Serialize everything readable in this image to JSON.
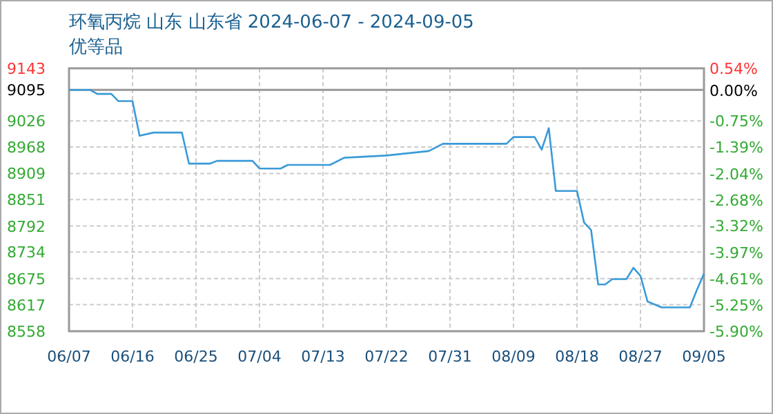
{
  "chart_data": {
    "type": "line",
    "title": "环氧丙烷 山东 山东省 2024-06-07 - 2024-09-05",
    "subtitle": "优等品",
    "x": [
      "2024-06-07",
      "2024-06-10",
      "2024-06-11",
      "2024-06-13",
      "2024-06-14",
      "2024-06-16",
      "2024-06-17",
      "2024-06-19",
      "2024-06-23",
      "2024-06-24",
      "2024-06-27",
      "2024-06-28",
      "2024-07-03",
      "2024-07-04",
      "2024-07-07",
      "2024-07-08",
      "2024-07-14",
      "2024-07-16",
      "2024-07-22",
      "2024-07-28",
      "2024-07-30",
      "2024-08-08",
      "2024-08-09",
      "2024-08-12",
      "2024-08-13",
      "2024-08-14",
      "2024-08-15",
      "2024-08-18",
      "2024-08-19",
      "2024-08-20",
      "2024-08-21",
      "2024-08-22",
      "2024-08-23",
      "2024-08-25",
      "2024-08-26",
      "2024-08-27",
      "2024-08-28",
      "2024-08-30",
      "2024-09-03",
      "2024-09-04",
      "2024-09-05"
    ],
    "series": [
      {
        "color": "#3a9ad9",
        "values": [
          9095,
          9095,
          9086,
          9086,
          9070,
          9070,
          8993,
          9000,
          9000,
          8931,
          8931,
          8937,
          8937,
          8920,
          8920,
          8928,
          8928,
          8944,
          8949,
          8959,
          8975,
          8975,
          8990,
          8990,
          8962,
          9010,
          8870,
          8870,
          8800,
          8783,
          8662,
          8662,
          8674,
          8674,
          8699,
          8681,
          8624,
          8611,
          8611,
          8650,
          8686
        ]
      }
    ],
    "xlim": [
      "2024-06-07",
      "2024-09-05"
    ],
    "xticks": [
      {
        "value": "2024-06-07",
        "label": "06/07"
      },
      {
        "value": "2024-06-16",
        "label": "06/16"
      },
      {
        "value": "2024-06-25",
        "label": "06/25"
      },
      {
        "value": "2024-07-04",
        "label": "07/04"
      },
      {
        "value": "2024-07-13",
        "label": "07/13"
      },
      {
        "value": "2024-07-22",
        "label": "07/22"
      },
      {
        "value": "2024-07-31",
        "label": "07/31"
      },
      {
        "value": "2024-08-09",
        "label": "08/09"
      },
      {
        "value": "2024-08-18",
        "label": "08/18"
      },
      {
        "value": "2024-08-27",
        "label": "08/27"
      },
      {
        "value": "2024-09-05",
        "label": "09/05"
      }
    ],
    "ylim": [
      8558,
      9143
    ],
    "yticks": [
      8558,
      8617,
      8675,
      8734,
      8792,
      8851,
      8909,
      8968,
      9026,
      9095,
      9143
    ],
    "y2lim": [
      -5.9,
      0.54
    ],
    "y2ticks": [
      {
        "value": -5.9,
        "label": "-5.90%"
      },
      {
        "value": -5.25,
        "label": "-5.25%"
      },
      {
        "value": -4.61,
        "label": "-4.61%"
      },
      {
        "value": -3.97,
        "label": "-3.97%"
      },
      {
        "value": -3.32,
        "label": "-3.32%"
      },
      {
        "value": -2.68,
        "label": "-2.68%"
      },
      {
        "value": -2.04,
        "label": "-2.04%"
      },
      {
        "value": -1.39,
        "label": "-1.39%"
      },
      {
        "value": -0.75,
        "label": "-0.75%"
      },
      {
        "value": 0,
        "label": "0.00%"
      },
      {
        "value": 0.54,
        "label": "0.54%"
      }
    ],
    "ref_lines": [
      {
        "axis": "y",
        "value": 9095,
        "color": "#999999",
        "line_style": "solid"
      }
    ],
    "grid": true,
    "marker": "none",
    "line_style": "solid"
  }
}
